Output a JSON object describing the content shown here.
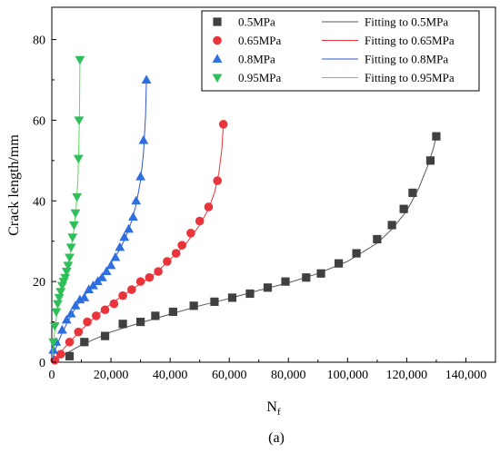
{
  "chart_data": {
    "type": "scatter",
    "title": "",
    "xlabel": "N",
    "xlabel_sub": "f",
    "ylabel": "Crack length/mm",
    "caption": "(a)",
    "xlim": [
      0,
      150000
    ],
    "ylim": [
      0,
      88
    ],
    "x_ticks": [
      0,
      20000,
      40000,
      60000,
      80000,
      100000,
      120000,
      140000
    ],
    "x_tick_labels": [
      "0",
      "20,000",
      "40,000",
      "60,000",
      "80,000",
      "100,000",
      "120,000",
      "140,000"
    ],
    "y_ticks": [
      0,
      20,
      40,
      60,
      80
    ],
    "y_tick_labels": [
      "0",
      "20",
      "40",
      "60",
      "80"
    ],
    "grid": false,
    "legend_position": "top-right",
    "series": [
      {
        "name": "0.5MPa",
        "fit_name": "Fitting to 0.5MPa",
        "color": "#404040",
        "fit_color": "#555555",
        "marker": "square",
        "points": [
          [
            6000,
            1.5
          ],
          [
            11000,
            5
          ],
          [
            18000,
            6.5
          ],
          [
            24000,
            9.5
          ],
          [
            30000,
            10
          ],
          [
            35000,
            11.5
          ],
          [
            41000,
            12.5
          ],
          [
            48000,
            14
          ],
          [
            55000,
            15
          ],
          [
            61000,
            16
          ],
          [
            67000,
            17
          ],
          [
            73000,
            18.5
          ],
          [
            79000,
            20
          ],
          [
            86000,
            21
          ],
          [
            91000,
            22
          ],
          [
            97000,
            24.5
          ],
          [
            103000,
            27
          ],
          [
            110000,
            30.5
          ],
          [
            115000,
            34
          ],
          [
            119000,
            38
          ],
          [
            122000,
            42
          ],
          [
            128000,
            50
          ],
          [
            130000,
            56
          ]
        ],
        "fit": [
          [
            0,
            0
          ],
          [
            5000,
            2.2
          ],
          [
            10000,
            4.3
          ],
          [
            20000,
            7.5
          ],
          [
            30000,
            9.8
          ],
          [
            40000,
            11.9
          ],
          [
            50000,
            14
          ],
          [
            60000,
            15.8
          ],
          [
            70000,
            17.8
          ],
          [
            80000,
            19.7
          ],
          [
            90000,
            22
          ],
          [
            100000,
            25
          ],
          [
            110000,
            29.5
          ],
          [
            115000,
            33
          ],
          [
            120000,
            37.5
          ],
          [
            124000,
            43
          ],
          [
            127000,
            48.5
          ],
          [
            129000,
            53
          ],
          [
            130000,
            56
          ]
        ]
      },
      {
        "name": "0.65MPa",
        "fit_name": "Fitting to 0.65MPa",
        "color": "#e8343a",
        "fit_color": "#e8343a",
        "marker": "circle",
        "points": [
          [
            1000,
            0.5
          ],
          [
            3000,
            2
          ],
          [
            6000,
            5
          ],
          [
            9000,
            7.5
          ],
          [
            12000,
            10
          ],
          [
            15000,
            11.5
          ],
          [
            18000,
            13
          ],
          [
            21000,
            14.5
          ],
          [
            24000,
            16.5
          ],
          [
            27000,
            18
          ],
          [
            30000,
            20
          ],
          [
            33000,
            21
          ],
          [
            36000,
            22.5
          ],
          [
            39000,
            25
          ],
          [
            42000,
            27
          ],
          [
            44000,
            29
          ],
          [
            47000,
            32
          ],
          [
            50000,
            35
          ],
          [
            53000,
            38.5
          ],
          [
            56000,
            45
          ],
          [
            58000,
            59
          ]
        ],
        "fit": [
          [
            0,
            0
          ],
          [
            3000,
            2.5
          ],
          [
            6000,
            5
          ],
          [
            10000,
            8
          ],
          [
            15000,
            11.5
          ],
          [
            20000,
            14.5
          ],
          [
            25000,
            17
          ],
          [
            30000,
            19.5
          ],
          [
            35000,
            22
          ],
          [
            40000,
            25.5
          ],
          [
            45000,
            29
          ],
          [
            50000,
            34
          ],
          [
            53000,
            38
          ],
          [
            55000,
            42
          ],
          [
            56500,
            47
          ],
          [
            57500,
            53
          ],
          [
            58000,
            59
          ]
        ]
      },
      {
        "name": "0.8MPa",
        "fit_name": "Fitting to 0.8MPa",
        "color": "#2d6fe0",
        "fit_color": "#2d55cc",
        "marker": "triangle-up",
        "points": [
          [
            500,
            3
          ],
          [
            1500,
            5
          ],
          [
            3500,
            8
          ],
          [
            5000,
            10.5
          ],
          [
            6500,
            12
          ],
          [
            8000,
            14
          ],
          [
            9500,
            15.5
          ],
          [
            11000,
            16
          ],
          [
            12500,
            18
          ],
          [
            14000,
            19
          ],
          [
            15500,
            20
          ],
          [
            17000,
            21
          ],
          [
            18500,
            22.5
          ],
          [
            20000,
            24
          ],
          [
            21500,
            26
          ],
          [
            23000,
            28.5
          ],
          [
            24500,
            31
          ],
          [
            26000,
            33
          ],
          [
            27500,
            36
          ],
          [
            28500,
            40
          ],
          [
            30000,
            46
          ],
          [
            31000,
            55
          ],
          [
            32000,
            70
          ]
        ],
        "fit": [
          [
            0,
            0
          ],
          [
            1000,
            2.8
          ],
          [
            3000,
            6.5
          ],
          [
            5000,
            9.5
          ],
          [
            8000,
            13.5
          ],
          [
            11000,
            16.5
          ],
          [
            14000,
            19.2
          ],
          [
            17000,
            21.8
          ],
          [
            20000,
            24.5
          ],
          [
            23000,
            28
          ],
          [
            25000,
            31
          ],
          [
            27000,
            35
          ],
          [
            28500,
            39
          ],
          [
            30000,
            45
          ],
          [
            31000,
            52
          ],
          [
            31700,
            61
          ],
          [
            32000,
            70
          ]
        ]
      },
      {
        "name": "0.95MPa",
        "fit_name": "Fitting to 0.95MPa",
        "color": "#2fbf5a",
        "fit_color": "#55dd55",
        "marker": "triangle-down",
        "points": [
          [
            500,
            5
          ],
          [
            1000,
            9
          ],
          [
            1500,
            12.5
          ],
          [
            2000,
            14.5
          ],
          [
            2500,
            16
          ],
          [
            3000,
            17.5
          ],
          [
            3500,
            19
          ],
          [
            4000,
            20
          ],
          [
            4500,
            21
          ],
          [
            5000,
            22.5
          ],
          [
            5500,
            24
          ],
          [
            6000,
            26
          ],
          [
            6500,
            28.5
          ],
          [
            7000,
            31
          ],
          [
            7500,
            34
          ],
          [
            8000,
            37
          ],
          [
            8500,
            41
          ],
          [
            9000,
            50.5
          ],
          [
            9200,
            60
          ],
          [
            9500,
            75
          ]
        ],
        "fit": [
          [
            0,
            0
          ],
          [
            500,
            4.5
          ],
          [
            1500,
            11
          ],
          [
            2500,
            15.5
          ],
          [
            3500,
            18.8
          ],
          [
            4500,
            21.5
          ],
          [
            5500,
            24.3
          ],
          [
            6500,
            28
          ],
          [
            7500,
            33
          ],
          [
            8300,
            39
          ],
          [
            8800,
            45
          ],
          [
            9100,
            52
          ],
          [
            9300,
            60
          ],
          [
            9450,
            68
          ],
          [
            9500,
            75
          ]
        ]
      }
    ]
  }
}
